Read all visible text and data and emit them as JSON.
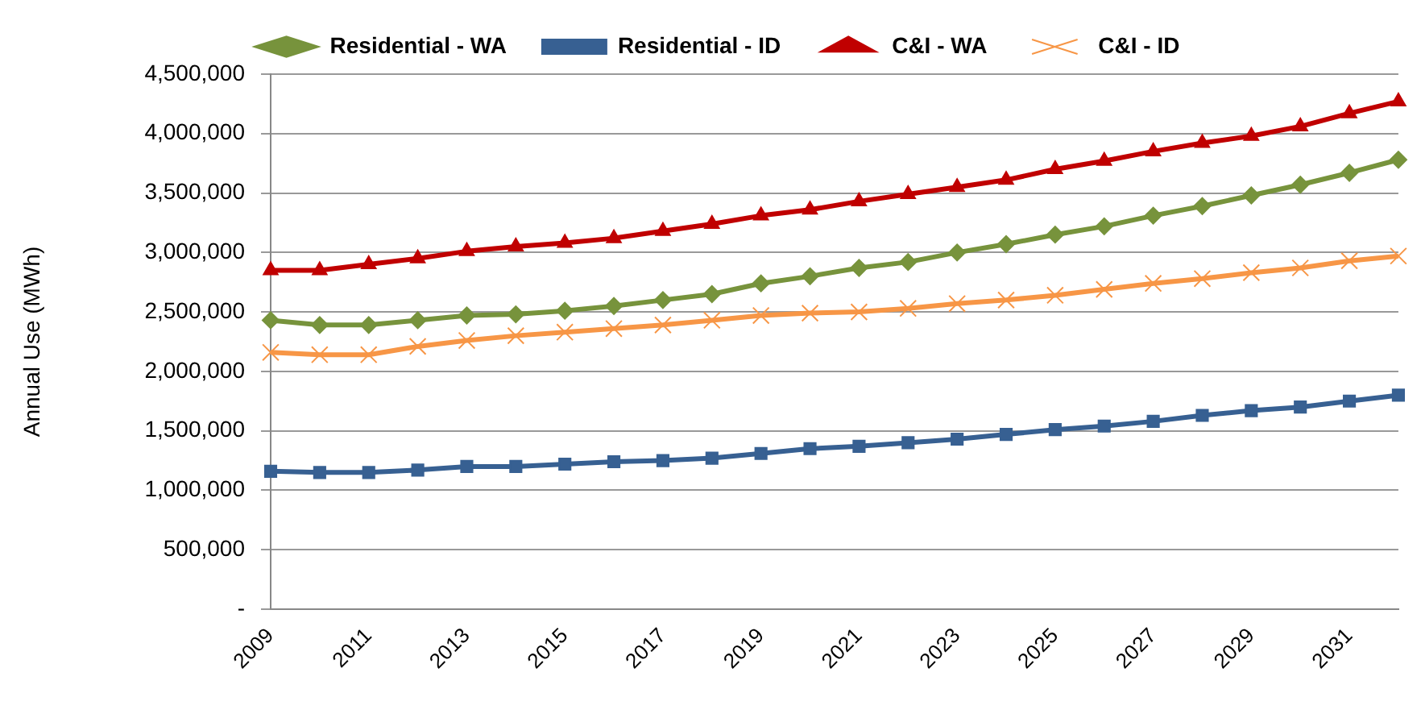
{
  "chart_data": {
    "type": "line",
    "ylabel": "Annual Use (MWh)",
    "categories": [
      "2009",
      null,
      "2011",
      null,
      "2013",
      null,
      "2015",
      null,
      "2017",
      null,
      "2019",
      null,
      "2021",
      null,
      "2023",
      null,
      "2025",
      null,
      "2027",
      null,
      "2029",
      null,
      "2031",
      null
    ],
    "series": [
      {
        "name": "Residential - WA",
        "color": "#77933c",
        "marker": "diamond",
        "values": [
          2430000,
          2390000,
          2390000,
          2430000,
          2470000,
          2480000,
          2510000,
          2550000,
          2600000,
          2650000,
          2740000,
          2800000,
          2870000,
          2920000,
          3000000,
          3070000,
          3150000,
          3220000,
          3310000,
          3390000,
          3480000,
          3570000,
          3670000,
          3780000
        ]
      },
      {
        "name": "Residential - ID",
        "color": "#376092",
        "marker": "square",
        "values": [
          1160000,
          1150000,
          1150000,
          1170000,
          1200000,
          1200000,
          1220000,
          1240000,
          1250000,
          1270000,
          1310000,
          1350000,
          1370000,
          1400000,
          1430000,
          1470000,
          1510000,
          1540000,
          1580000,
          1630000,
          1670000,
          1700000,
          1750000,
          1800000
        ]
      },
      {
        "name": "C&I - WA",
        "color": "#c00000",
        "marker": "triangle",
        "values": [
          2850000,
          2850000,
          2900000,
          2950000,
          3010000,
          3050000,
          3080000,
          3120000,
          3180000,
          3240000,
          3310000,
          3360000,
          3430000,
          3490000,
          3550000,
          3610000,
          3700000,
          3770000,
          3850000,
          3920000,
          3980000,
          4060000,
          4170000,
          4270000
        ]
      },
      {
        "name": "C&I - ID",
        "color": "#f79646",
        "marker": "cross",
        "values": [
          2160000,
          2140000,
          2140000,
          2210000,
          2260000,
          2300000,
          2330000,
          2360000,
          2390000,
          2430000,
          2470000,
          2490000,
          2500000,
          2530000,
          2570000,
          2600000,
          2640000,
          2690000,
          2740000,
          2780000,
          2830000,
          2870000,
          2930000,
          2970000
        ]
      }
    ],
    "ylim": [
      0,
      4500000
    ],
    "yticks": [
      {
        "value": 0,
        "label": "-"
      },
      {
        "value": 500000,
        "label": "500,000"
      },
      {
        "value": 1000000,
        "label": "1,000,000"
      },
      {
        "value": 1500000,
        "label": "1,500,000"
      },
      {
        "value": 2000000,
        "label": "2,000,000"
      },
      {
        "value": 2500000,
        "label": "2,500,000"
      },
      {
        "value": 3000000,
        "label": "3,000,000"
      },
      {
        "value": 3500000,
        "label": "3,500,000"
      },
      {
        "value": 4000000,
        "label": "4,000,000"
      },
      {
        "value": 4500000,
        "label": "4,500,000"
      }
    ],
    "grid": "y",
    "legend": "top"
  }
}
